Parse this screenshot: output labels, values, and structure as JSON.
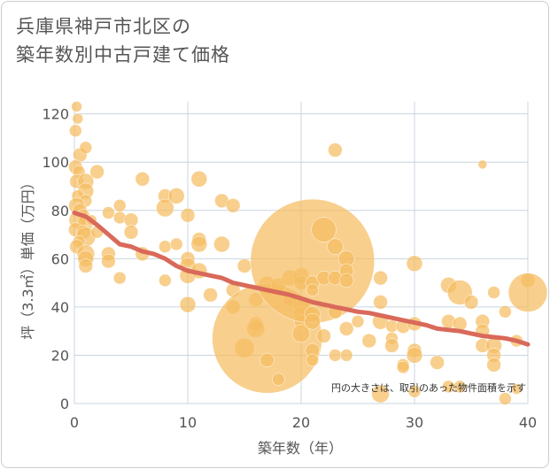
{
  "title_line1": "兵庫県神戸市北区の",
  "title_line2": "築年数別中古戸建て価格",
  "chart_data": {
    "type": "scatter",
    "title": "兵庫県神戸市北区の築年数別中古戸建て価格",
    "xlabel": "築年数（年）",
    "ylabel": "坪（3.3㎡）単価（万円）",
    "xlim": [
      0,
      40
    ],
    "ylim": [
      0,
      125
    ],
    "xticks": [
      0,
      10,
      20,
      30,
      40
    ],
    "yticks": [
      0,
      20,
      40,
      60,
      80,
      100,
      120
    ],
    "grid": true,
    "annotation": "円の大きさは、取引のあった物件面積を示す",
    "colors": {
      "bubble": "#f5bd61",
      "trend": "#d9695a",
      "grid": "#c8d4e0",
      "text": "#555555"
    },
    "points": [
      {
        "x": 0.2,
        "y": 123,
        "s": 6
      },
      {
        "x": 0.3,
        "y": 118,
        "s": 6
      },
      {
        "x": 0.1,
        "y": 113,
        "s": 7
      },
      {
        "x": 0.5,
        "y": 103,
        "s": 8
      },
      {
        "x": 1.0,
        "y": 106,
        "s": 7
      },
      {
        "x": 0.1,
        "y": 98,
        "s": 8
      },
      {
        "x": 0.4,
        "y": 96,
        "s": 7
      },
      {
        "x": 0.2,
        "y": 92,
        "s": 8
      },
      {
        "x": 1.0,
        "y": 92,
        "s": 9
      },
      {
        "x": 1.0,
        "y": 88,
        "s": 9
      },
      {
        "x": 0.3,
        "y": 86,
        "s": 7
      },
      {
        "x": 1.0,
        "y": 84,
        "s": 7
      },
      {
        "x": 0.2,
        "y": 82,
        "s": 9
      },
      {
        "x": 0.5,
        "y": 80,
        "s": 8
      },
      {
        "x": 0.8,
        "y": 78,
        "s": 7
      },
      {
        "x": 0.3,
        "y": 76,
        "s": 10
      },
      {
        "x": 1.0,
        "y": 75,
        "s": 9
      },
      {
        "x": 0.1,
        "y": 72,
        "s": 8
      },
      {
        "x": 0.8,
        "y": 71,
        "s": 8
      },
      {
        "x": 1.0,
        "y": 69,
        "s": 11
      },
      {
        "x": 0.4,
        "y": 67,
        "s": 7
      },
      {
        "x": 0.2,
        "y": 65,
        "s": 8
      },
      {
        "x": 1.0,
        "y": 62,
        "s": 10
      },
      {
        "x": 1.0,
        "y": 60,
        "s": 9
      },
      {
        "x": 1.0,
        "y": 57,
        "s": 8
      },
      {
        "x": 2.0,
        "y": 96,
        "s": 8
      },
      {
        "x": 2.0,
        "y": 71,
        "s": 7
      },
      {
        "x": 1.5,
        "y": 76,
        "s": 6
      },
      {
        "x": 3.0,
        "y": 79,
        "s": 7
      },
      {
        "x": 3.0,
        "y": 62,
        "s": 8
      },
      {
        "x": 3.0,
        "y": 59,
        "s": 8
      },
      {
        "x": 4.0,
        "y": 82,
        "s": 7
      },
      {
        "x": 4.0,
        "y": 77,
        "s": 7
      },
      {
        "x": 4.0,
        "y": 52,
        "s": 7
      },
      {
        "x": 5.0,
        "y": 76,
        "s": 8
      },
      {
        "x": 5.0,
        "y": 71,
        "s": 8
      },
      {
        "x": 6.0,
        "y": 93,
        "s": 8
      },
      {
        "x": 6.0,
        "y": 62,
        "s": 8
      },
      {
        "x": 8.0,
        "y": 86,
        "s": 8
      },
      {
        "x": 8.0,
        "y": 81,
        "s": 10
      },
      {
        "x": 8.0,
        "y": 65,
        "s": 7
      },
      {
        "x": 8.0,
        "y": 51,
        "s": 7
      },
      {
        "x": 9.0,
        "y": 86,
        "s": 9
      },
      {
        "x": 9.0,
        "y": 66,
        "s": 7
      },
      {
        "x": 10.0,
        "y": 78,
        "s": 8
      },
      {
        "x": 10.0,
        "y": 60,
        "s": 8
      },
      {
        "x": 10.0,
        "y": 57,
        "s": 9
      },
      {
        "x": 10.0,
        "y": 53,
        "s": 9
      },
      {
        "x": 10.0,
        "y": 41,
        "s": 9
      },
      {
        "x": 11.0,
        "y": 93,
        "s": 9
      },
      {
        "x": 11.0,
        "y": 68,
        "s": 8
      },
      {
        "x": 11.0,
        "y": 66,
        "s": 9
      },
      {
        "x": 11.0,
        "y": 55,
        "s": 9
      },
      {
        "x": 12.0,
        "y": 45,
        "s": 8
      },
      {
        "x": 13.0,
        "y": 84,
        "s": 8
      },
      {
        "x": 13.0,
        "y": 66,
        "s": 9
      },
      {
        "x": 14.0,
        "y": 82,
        "s": 8
      },
      {
        "x": 14.0,
        "y": 47,
        "s": 8
      },
      {
        "x": 14.0,
        "y": 40,
        "s": 8
      },
      {
        "x": 15.0,
        "y": 57,
        "s": 8
      },
      {
        "x": 15.0,
        "y": 23,
        "s": 11
      },
      {
        "x": 16.0,
        "y": 43,
        "s": 8
      },
      {
        "x": 16.0,
        "y": 33,
        "s": 8
      },
      {
        "x": 16.0,
        "y": 31,
        "s": 10
      },
      {
        "x": 17.0,
        "y": 49,
        "s": 10
      },
      {
        "x": 17.0,
        "y": 27,
        "s": 62
      },
      {
        "x": 17.0,
        "y": 18,
        "s": 8
      },
      {
        "x": 18.0,
        "y": 49,
        "s": 8
      },
      {
        "x": 18.0,
        "y": 10,
        "s": 7
      },
      {
        "x": 19.0,
        "y": 52,
        "s": 9
      },
      {
        "x": 19.0,
        "y": 43,
        "s": 8
      },
      {
        "x": 20.0,
        "y": 53,
        "s": 9
      },
      {
        "x": 20.0,
        "y": 50,
        "s": 8
      },
      {
        "x": 20.0,
        "y": 40,
        "s": 9
      },
      {
        "x": 20.0,
        "y": 37,
        "s": 9
      },
      {
        "x": 20.0,
        "y": 34,
        "s": 8
      },
      {
        "x": 20.0,
        "y": 29,
        "s": 10
      },
      {
        "x": 21.0,
        "y": 59,
        "s": 70
      },
      {
        "x": 21.0,
        "y": 50,
        "s": 8
      },
      {
        "x": 21.0,
        "y": 47,
        "s": 7
      },
      {
        "x": 21.0,
        "y": 37,
        "s": 9
      },
      {
        "x": 21.0,
        "y": 34,
        "s": 9
      },
      {
        "x": 21.0,
        "y": 22,
        "s": 8
      },
      {
        "x": 21.0,
        "y": 18,
        "s": 7
      },
      {
        "x": 22.0,
        "y": 72,
        "s": 14
      },
      {
        "x": 22.0,
        "y": 52,
        "s": 8
      },
      {
        "x": 22.0,
        "y": 28,
        "s": 8
      },
      {
        "x": 23.0,
        "y": 105,
        "s": 8
      },
      {
        "x": 23.0,
        "y": 65,
        "s": 9
      },
      {
        "x": 23.0,
        "y": 52,
        "s": 8
      },
      {
        "x": 23.0,
        "y": 38,
        "s": 8
      },
      {
        "x": 23.0,
        "y": 20,
        "s": 7
      },
      {
        "x": 24.0,
        "y": 60,
        "s": 9
      },
      {
        "x": 24.0,
        "y": 55,
        "s": 8
      },
      {
        "x": 24.0,
        "y": 51,
        "s": 8
      },
      {
        "x": 24.0,
        "y": 31,
        "s": 8
      },
      {
        "x": 24.0,
        "y": 20,
        "s": 7
      },
      {
        "x": 25.0,
        "y": 34,
        "s": 7
      },
      {
        "x": 26.0,
        "y": 26,
        "s": 8
      },
      {
        "x": 27.0,
        "y": 52,
        "s": 8
      },
      {
        "x": 27.0,
        "y": 42,
        "s": 8
      },
      {
        "x": 27.0,
        "y": 34,
        "s": 9
      },
      {
        "x": 27.0,
        "y": 4,
        "s": 10
      },
      {
        "x": 28.0,
        "y": 32,
        "s": 7
      },
      {
        "x": 28.0,
        "y": 27,
        "s": 7
      },
      {
        "x": 28.0,
        "y": 24,
        "s": 8
      },
      {
        "x": 29.0,
        "y": 32,
        "s": 8
      },
      {
        "x": 29.0,
        "y": 16,
        "s": 7
      },
      {
        "x": 29.0,
        "y": 15,
        "s": 7
      },
      {
        "x": 30.0,
        "y": 58,
        "s": 9
      },
      {
        "x": 30.0,
        "y": 33,
        "s": 8
      },
      {
        "x": 30.0,
        "y": 22,
        "s": 8
      },
      {
        "x": 30.0,
        "y": 20,
        "s": 9
      },
      {
        "x": 30.0,
        "y": 5,
        "s": 7
      },
      {
        "x": 32.0,
        "y": 17,
        "s": 8
      },
      {
        "x": 33.0,
        "y": 49,
        "s": 9
      },
      {
        "x": 33.0,
        "y": 34,
        "s": 8
      },
      {
        "x": 33.0,
        "y": 7,
        "s": 7
      },
      {
        "x": 34.0,
        "y": 46,
        "s": 14
      },
      {
        "x": 34.0,
        "y": 33,
        "s": 8
      },
      {
        "x": 34.0,
        "y": 7,
        "s": 7
      },
      {
        "x": 35.0,
        "y": 42,
        "s": 8
      },
      {
        "x": 36.0,
        "y": 99,
        "s": 5
      },
      {
        "x": 36.0,
        "y": 34,
        "s": 8
      },
      {
        "x": 36.0,
        "y": 30,
        "s": 8
      },
      {
        "x": 36.0,
        "y": 24,
        "s": 8
      },
      {
        "x": 37.0,
        "y": 46,
        "s": 7
      },
      {
        "x": 37.0,
        "y": 24,
        "s": 9
      },
      {
        "x": 37.0,
        "y": 20,
        "s": 8
      },
      {
        "x": 37.0,
        "y": 16,
        "s": 8
      },
      {
        "x": 38.0,
        "y": 38,
        "s": 7
      },
      {
        "x": 38.0,
        "y": 2,
        "s": 7
      },
      {
        "x": 39.0,
        "y": 26,
        "s": 7
      },
      {
        "x": 39.0,
        "y": 6,
        "s": 6
      },
      {
        "x": 40.0,
        "y": 51,
        "s": 8
      },
      {
        "x": 40.0,
        "y": 46,
        "s": 22
      }
    ],
    "trend_line": {
      "x": [
        0,
        1,
        2,
        3,
        4,
        5,
        6,
        7,
        8,
        9,
        10,
        11,
        12,
        13,
        14,
        15,
        16,
        17,
        18,
        19,
        20,
        21,
        22,
        23,
        24,
        25,
        26,
        27,
        28,
        29,
        30,
        31,
        32,
        33,
        34,
        35,
        36,
        37,
        38,
        39,
        40
      ],
      "y": [
        79,
        77.5,
        74,
        70,
        66,
        65,
        63,
        62,
        60,
        57,
        55,
        54,
        53,
        52,
        50,
        49,
        48,
        47,
        46,
        45,
        43.5,
        42,
        41,
        40,
        39,
        38,
        37.5,
        36.5,
        35.5,
        34.5,
        33.5,
        32.5,
        31,
        30.5,
        30,
        29,
        28,
        27.5,
        27,
        26,
        24.5
      ]
    }
  }
}
